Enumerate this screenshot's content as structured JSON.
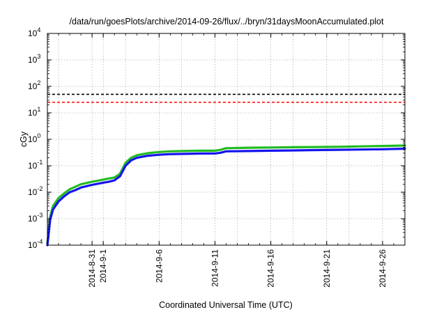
{
  "chart_data": {
    "type": "line",
    "title": "/data/run/goesPlots/archive/2014-09-26/flux/../bryn/31daysMoonAccumulated.plot",
    "xlabel": "Coordinated Universal Time (UTC)",
    "ylabel": "cGy",
    "y_scale": "log",
    "ylim": [
      0.0001,
      10000
    ],
    "xlim": [
      "2014-08-27",
      "2014-09-28"
    ],
    "grid": true,
    "y_ticks": [
      {
        "value": 0.0001,
        "base": "10",
        "exp": "-4"
      },
      {
        "value": 0.001,
        "base": "10",
        "exp": "-3"
      },
      {
        "value": 0.01,
        "base": "10",
        "exp": "-2"
      },
      {
        "value": 0.1,
        "base": "10",
        "exp": "-1"
      },
      {
        "value": 1,
        "base": "10",
        "exp": "0"
      },
      {
        "value": 10,
        "base": "10",
        "exp": "1"
      },
      {
        "value": 100,
        "base": "10",
        "exp": "2"
      },
      {
        "value": 1000,
        "base": "10",
        "exp": "3"
      },
      {
        "value": 10000,
        "base": "10",
        "exp": "4"
      }
    ],
    "x_ticks": [
      "2014-8-31",
      "2014-9-1",
      "2014-9-6",
      "2014-9-11",
      "2014-9-16",
      "2014-9-21",
      "2014-9-26"
    ],
    "x_tick_dates": [
      "2014-08-31",
      "2014-09-01",
      "2014-09-06",
      "2014-09-11",
      "2014-09-16",
      "2014-09-21",
      "2014-09-26"
    ],
    "x_minor_grid_dates": [
      "2014-08-28",
      "2014-09-03",
      "2014-09-08",
      "2014-09-13",
      "2014-09-18",
      "2014-09-23",
      "2014-09-28"
    ],
    "reference_lines": [
      {
        "value": 50,
        "color": "#000000",
        "style": "dashed"
      },
      {
        "value": 25,
        "color": "#ff0000",
        "style": "dashed"
      }
    ],
    "series": [
      {
        "color": "#22bb22",
        "x": [
          "2014-08-27T00:00",
          "2014-08-27T06:00",
          "2014-08-27T12:00",
          "2014-08-28T00:00",
          "2014-08-28T12:00",
          "2014-08-29T00:00",
          "2014-08-29T12:00",
          "2014-08-30T00:00",
          "2014-08-31T00:00",
          "2014-09-01T00:00",
          "2014-09-01T12:00",
          "2014-09-02T00:00",
          "2014-09-02T12:00",
          "2014-09-03T00:00",
          "2014-09-03T12:00",
          "2014-09-04T00:00",
          "2014-09-05T00:00",
          "2014-09-06T00:00",
          "2014-09-07T00:00",
          "2014-09-08T00:00",
          "2014-09-10T00:00",
          "2014-09-11T00:00",
          "2014-09-11T12:00",
          "2014-09-12T00:00",
          "2014-09-14T00:00",
          "2014-09-16T00:00",
          "2014-09-18T00:00",
          "2014-09-20T00:00",
          "2014-09-22T00:00",
          "2014-09-24T00:00",
          "2014-09-26T00:00",
          "2014-09-28T00:00"
        ],
        "y": [
          0.00012,
          0.0012,
          0.003,
          0.006,
          0.009,
          0.013,
          0.016,
          0.02,
          0.025,
          0.03,
          0.033,
          0.036,
          0.05,
          0.13,
          0.2,
          0.25,
          0.3,
          0.33,
          0.35,
          0.36,
          0.37,
          0.37,
          0.4,
          0.46,
          0.48,
          0.49,
          0.5,
          0.51,
          0.52,
          0.54,
          0.56,
          0.58
        ]
      },
      {
        "color": "#1414ee",
        "x": [
          "2014-08-27T00:00",
          "2014-08-27T06:00",
          "2014-08-27T12:00",
          "2014-08-28T00:00",
          "2014-08-28T12:00",
          "2014-08-29T00:00",
          "2014-08-29T12:00",
          "2014-08-30T00:00",
          "2014-08-31T00:00",
          "2014-09-01T00:00",
          "2014-09-01T12:00",
          "2014-09-02T00:00",
          "2014-09-02T12:00",
          "2014-09-03T00:00",
          "2014-09-03T12:00",
          "2014-09-04T00:00",
          "2014-09-05T00:00",
          "2014-09-06T00:00",
          "2014-09-07T00:00",
          "2014-09-08T00:00",
          "2014-09-10T00:00",
          "2014-09-11T00:00",
          "2014-09-11T12:00",
          "2014-09-12T00:00",
          "2014-09-14T00:00",
          "2014-09-16T00:00",
          "2014-09-18T00:00",
          "2014-09-20T00:00",
          "2014-09-22T00:00",
          "2014-09-24T00:00",
          "2014-09-26T00:00",
          "2014-09-28T00:00"
        ],
        "y": [
          0.0001,
          0.0009,
          0.0022,
          0.0045,
          0.007,
          0.01,
          0.012,
          0.015,
          0.019,
          0.023,
          0.025,
          0.028,
          0.04,
          0.1,
          0.16,
          0.2,
          0.24,
          0.26,
          0.275,
          0.28,
          0.29,
          0.29,
          0.31,
          0.35,
          0.36,
          0.37,
          0.38,
          0.39,
          0.4,
          0.41,
          0.42,
          0.44
        ]
      }
    ]
  }
}
